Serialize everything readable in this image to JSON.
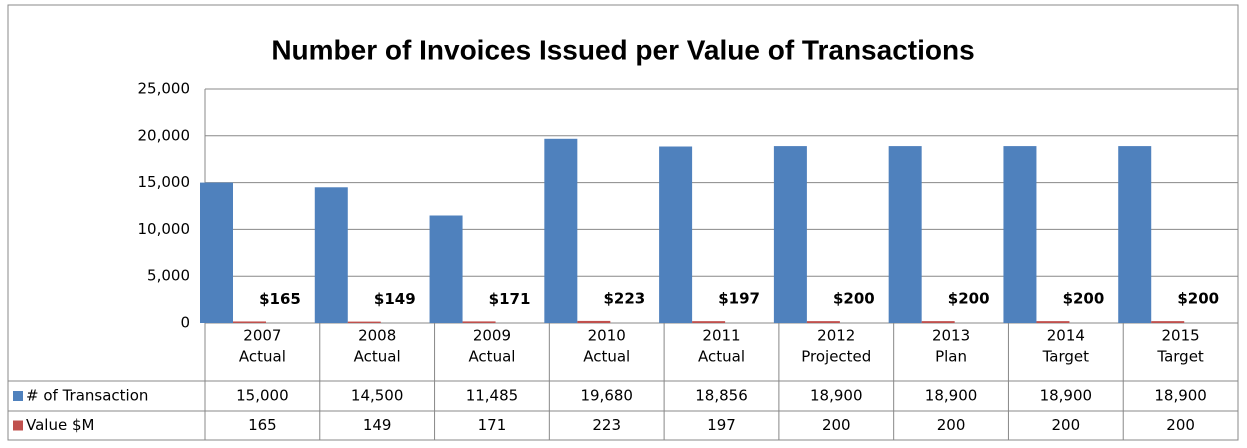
{
  "chart_data": {
    "type": "bar",
    "title": "Number of Invoices Issued per Value of Transactions",
    "categories": [
      [
        "2007",
        "Actual"
      ],
      [
        "2008",
        "Actual"
      ],
      [
        "2009",
        "Actual"
      ],
      [
        "2010",
        "Actual"
      ],
      [
        "2011",
        "Actual"
      ],
      [
        "2012",
        "Projected"
      ],
      [
        "2013",
        "Plan"
      ],
      [
        "2014",
        "Target"
      ],
      [
        "2015",
        "Target"
      ]
    ],
    "series": [
      {
        "name": "# of Transaction",
        "color": "#4f81bd",
        "values": [
          15000,
          14500,
          11485,
          19680,
          18856,
          18900,
          18900,
          18900,
          18900
        ],
        "value_labels": [
          "15,000",
          "14,500",
          "11,485",
          "19,680",
          "18,856",
          "18,900",
          "18,900",
          "18,900",
          "18,900"
        ]
      },
      {
        "name": "Value $M",
        "color": "#c0504d",
        "values": [
          165,
          149,
          171,
          223,
          197,
          200,
          200,
          200,
          200
        ],
        "value_labels": [
          "$165",
          "$149",
          "$171",
          "$223",
          "$197",
          "$200",
          "$200",
          "$200",
          "$200"
        ]
      }
    ],
    "ylim": [
      0,
      25000
    ],
    "yticks": [
      0,
      {
        "value": 5000,
        "label": "5,000"
      },
      {
        "value": 10000,
        "label": "10,000"
      },
      {
        "value": 15000,
        "label": "15,000"
      },
      {
        "value": 20000,
        "label": "20,000"
      },
      {
        "value": 25000,
        "label": "25,000"
      }
    ],
    "grid": true
  }
}
